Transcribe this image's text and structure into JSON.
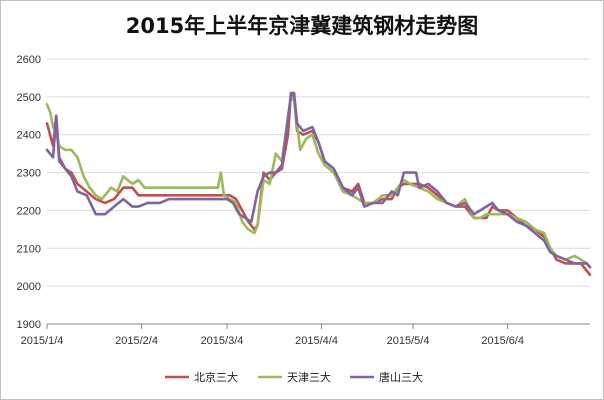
{
  "chart_data": {
    "type": "line",
    "title": "2015年上半年京津冀建筑钢材走势图",
    "xlabel": "",
    "ylabel": "",
    "ylim": [
      1900,
      2600
    ],
    "yticks": [
      1900,
      2000,
      2100,
      2200,
      2300,
      2400,
      2500,
      2600
    ],
    "x_range": [
      "2015-01-04",
      "2015-07-01"
    ],
    "xtick_labels": [
      "2015/1/4",
      "2015/2/4",
      "2015/3/4",
      "2015/4/4",
      "2015/5/4",
      "2015/6/4"
    ],
    "xtick_dates": [
      "2015-01-04",
      "2015-02-04",
      "2015-03-04",
      "2015-04-04",
      "2015-05-04",
      "2015-06-04"
    ],
    "grid": "horizontal",
    "legend_position": "bottom",
    "series": [
      {
        "name": "北京三大",
        "color": "#c0504d",
        "points": [
          [
            "2015-01-04",
            2430
          ],
          [
            "2015-01-06",
            2370
          ],
          [
            "2015-01-07",
            2450
          ],
          [
            "2015-01-08",
            2340
          ],
          [
            "2015-01-10",
            2310
          ],
          [
            "2015-01-12",
            2300
          ],
          [
            "2015-01-14",
            2270
          ],
          [
            "2015-01-17",
            2250
          ],
          [
            "2015-01-20",
            2230
          ],
          [
            "2015-01-23",
            2220
          ],
          [
            "2015-01-26",
            2230
          ],
          [
            "2015-01-29",
            2260
          ],
          [
            "2015-02-01",
            2260
          ],
          [
            "2015-02-03",
            2240
          ],
          [
            "2015-02-06",
            2240
          ],
          [
            "2015-02-10",
            2240
          ],
          [
            "2015-02-15",
            2240
          ],
          [
            "2015-02-20",
            2240
          ],
          [
            "2015-02-25",
            2240
          ],
          [
            "2015-03-01",
            2240
          ],
          [
            "2015-03-04",
            2240
          ],
          [
            "2015-03-05",
            2240
          ],
          [
            "2015-03-07",
            2230
          ],
          [
            "2015-03-09",
            2200
          ],
          [
            "2015-03-11",
            2170
          ],
          [
            "2015-03-13",
            2150
          ],
          [
            "2015-03-14",
            2160
          ],
          [
            "2015-03-16",
            2300
          ],
          [
            "2015-03-18",
            2280
          ],
          [
            "2015-03-20",
            2300
          ],
          [
            "2015-03-22",
            2310
          ],
          [
            "2015-03-24",
            2400
          ],
          [
            "2015-03-25",
            2510
          ],
          [
            "2015-03-26",
            2500
          ],
          [
            "2015-03-27",
            2410
          ],
          [
            "2015-03-29",
            2400
          ],
          [
            "2015-04-01",
            2410
          ],
          [
            "2015-04-03",
            2380
          ],
          [
            "2015-04-05",
            2330
          ],
          [
            "2015-04-08",
            2310
          ],
          [
            "2015-04-11",
            2260
          ],
          [
            "2015-04-14",
            2250
          ],
          [
            "2015-04-16",
            2270
          ],
          [
            "2015-04-18",
            2220
          ],
          [
            "2015-04-21",
            2220
          ],
          [
            "2015-04-24",
            2230
          ],
          [
            "2015-04-27",
            2230
          ],
          [
            "2015-04-29",
            2260
          ],
          [
            "2015-05-01",
            2270
          ],
          [
            "2015-05-03",
            2270
          ],
          [
            "2015-05-06",
            2270
          ],
          [
            "2015-05-09",
            2260
          ],
          [
            "2015-05-12",
            2240
          ],
          [
            "2015-05-15",
            2220
          ],
          [
            "2015-05-18",
            2210
          ],
          [
            "2015-05-21",
            2210
          ],
          [
            "2015-05-24",
            2180
          ],
          [
            "2015-05-26",
            2180
          ],
          [
            "2015-05-28",
            2180
          ],
          [
            "2015-05-30",
            2210
          ],
          [
            "2015-06-01",
            2200
          ],
          [
            "2015-06-04",
            2200
          ],
          [
            "2015-06-07",
            2180
          ],
          [
            "2015-06-10",
            2160
          ],
          [
            "2015-06-13",
            2150
          ],
          [
            "2015-06-16",
            2130
          ],
          [
            "2015-06-18",
            2100
          ],
          [
            "2015-06-20",
            2070
          ],
          [
            "2015-06-23",
            2060
          ],
          [
            "2015-06-26",
            2060
          ],
          [
            "2015-06-28",
            2060
          ],
          [
            "2015-06-30",
            2040
          ],
          [
            "2015-07-01",
            2030
          ]
        ]
      },
      {
        "name": "天津三大",
        "color": "#9bbb59",
        "points": [
          [
            "2015-01-04",
            2480
          ],
          [
            "2015-01-05",
            2460
          ],
          [
            "2015-01-06",
            2420
          ],
          [
            "2015-01-07",
            2400
          ],
          [
            "2015-01-08",
            2370
          ],
          [
            "2015-01-10",
            2360
          ],
          [
            "2015-01-12",
            2360
          ],
          [
            "2015-01-14",
            2340
          ],
          [
            "2015-01-16",
            2290
          ],
          [
            "2015-01-18",
            2260
          ],
          [
            "2015-01-20",
            2240
          ],
          [
            "2015-01-22",
            2230
          ],
          [
            "2015-01-25",
            2260
          ],
          [
            "2015-01-27",
            2250
          ],
          [
            "2015-01-29",
            2290
          ],
          [
            "2015-02-01",
            2270
          ],
          [
            "2015-02-03",
            2280
          ],
          [
            "2015-02-05",
            2260
          ],
          [
            "2015-02-10",
            2260
          ],
          [
            "2015-02-15",
            2260
          ],
          [
            "2015-02-20",
            2260
          ],
          [
            "2015-02-25",
            2260
          ],
          [
            "2015-03-01",
            2260
          ],
          [
            "2015-03-02",
            2300
          ],
          [
            "2015-03-03",
            2240
          ],
          [
            "2015-03-05",
            2230
          ],
          [
            "2015-03-07",
            2220
          ],
          [
            "2015-03-09",
            2170
          ],
          [
            "2015-03-11",
            2150
          ],
          [
            "2015-03-13",
            2140
          ],
          [
            "2015-03-14",
            2160
          ],
          [
            "2015-03-16",
            2280
          ],
          [
            "2015-03-18",
            2270
          ],
          [
            "2015-03-20",
            2350
          ],
          [
            "2015-03-22",
            2330
          ],
          [
            "2015-03-24",
            2450
          ],
          [
            "2015-03-25",
            2500
          ],
          [
            "2015-03-26",
            2490
          ],
          [
            "2015-03-28",
            2360
          ],
          [
            "2015-03-30",
            2390
          ],
          [
            "2015-04-01",
            2400
          ],
          [
            "2015-04-03",
            2350
          ],
          [
            "2015-04-05",
            2320
          ],
          [
            "2015-04-08",
            2300
          ],
          [
            "2015-04-11",
            2250
          ],
          [
            "2015-04-14",
            2240
          ],
          [
            "2015-04-16",
            2230
          ],
          [
            "2015-04-18",
            2220
          ],
          [
            "2015-04-21",
            2220
          ],
          [
            "2015-04-24",
            2240
          ],
          [
            "2015-04-27",
            2240
          ],
          [
            "2015-04-29",
            2260
          ],
          [
            "2015-05-01",
            2280
          ],
          [
            "2015-05-03",
            2270
          ],
          [
            "2015-05-06",
            2260
          ],
          [
            "2015-05-09",
            2250
          ],
          [
            "2015-05-12",
            2230
          ],
          [
            "2015-05-15",
            2220
          ],
          [
            "2015-05-18",
            2210
          ],
          [
            "2015-05-21",
            2230
          ],
          [
            "2015-05-24",
            2180
          ],
          [
            "2015-05-26",
            2180
          ],
          [
            "2015-05-28",
            2190
          ],
          [
            "2015-05-30",
            2190
          ],
          [
            "2015-06-01",
            2190
          ],
          [
            "2015-06-04",
            2190
          ],
          [
            "2015-06-07",
            2180
          ],
          [
            "2015-06-10",
            2170
          ],
          [
            "2015-06-13",
            2150
          ],
          [
            "2015-06-16",
            2140
          ],
          [
            "2015-06-18",
            2100
          ],
          [
            "2015-06-20",
            2080
          ],
          [
            "2015-06-23",
            2070
          ],
          [
            "2015-06-26",
            2080
          ],
          [
            "2015-06-28",
            2070
          ],
          [
            "2015-06-30",
            2060
          ],
          [
            "2015-07-01",
            2050
          ]
        ]
      },
      {
        "name": "唐山三大",
        "color": "#8064a2",
        "points": [
          [
            "2015-01-04",
            2360
          ],
          [
            "2015-01-06",
            2340
          ],
          [
            "2015-01-07",
            2450
          ],
          [
            "2015-01-08",
            2330
          ],
          [
            "2015-01-10",
            2310
          ],
          [
            "2015-01-12",
            2290
          ],
          [
            "2015-01-14",
            2250
          ],
          [
            "2015-01-17",
            2240
          ],
          [
            "2015-01-20",
            2190
          ],
          [
            "2015-01-23",
            2190
          ],
          [
            "2015-01-26",
            2210
          ],
          [
            "2015-01-29",
            2230
          ],
          [
            "2015-02-01",
            2210
          ],
          [
            "2015-02-03",
            2210
          ],
          [
            "2015-02-06",
            2220
          ],
          [
            "2015-02-10",
            2220
          ],
          [
            "2015-02-13",
            2230
          ],
          [
            "2015-02-18",
            2230
          ],
          [
            "2015-02-23",
            2230
          ],
          [
            "2015-02-28",
            2230
          ],
          [
            "2015-03-04",
            2230
          ],
          [
            "2015-03-06",
            2220
          ],
          [
            "2015-03-08",
            2190
          ],
          [
            "2015-03-10",
            2180
          ],
          [
            "2015-03-12",
            2170
          ],
          [
            "2015-03-14",
            2250
          ],
          [
            "2015-03-16",
            2290
          ],
          [
            "2015-03-18",
            2300
          ],
          [
            "2015-03-20",
            2300
          ],
          [
            "2015-03-22",
            2320
          ],
          [
            "2015-03-24",
            2440
          ],
          [
            "2015-03-25",
            2510
          ],
          [
            "2015-03-26",
            2510
          ],
          [
            "2015-03-27",
            2430
          ],
          [
            "2015-03-29",
            2410
          ],
          [
            "2015-04-01",
            2420
          ],
          [
            "2015-04-03",
            2380
          ],
          [
            "2015-04-05",
            2330
          ],
          [
            "2015-04-08",
            2310
          ],
          [
            "2015-04-11",
            2260
          ],
          [
            "2015-04-14",
            2240
          ],
          [
            "2015-04-16",
            2260
          ],
          [
            "2015-04-18",
            2210
          ],
          [
            "2015-04-21",
            2220
          ],
          [
            "2015-04-24",
            2220
          ],
          [
            "2015-04-27",
            2250
          ],
          [
            "2015-04-29",
            2240
          ],
          [
            "2015-05-01",
            2300
          ],
          [
            "2015-05-03",
            2300
          ],
          [
            "2015-05-05",
            2300
          ],
          [
            "2015-05-06",
            2260
          ],
          [
            "2015-05-09",
            2270
          ],
          [
            "2015-05-12",
            2250
          ],
          [
            "2015-05-15",
            2220
          ],
          [
            "2015-05-18",
            2210
          ],
          [
            "2015-05-21",
            2220
          ],
          [
            "2015-05-24",
            2190
          ],
          [
            "2015-05-26",
            2200
          ],
          [
            "2015-05-28",
            2210
          ],
          [
            "2015-05-30",
            2220
          ],
          [
            "2015-06-01",
            2200
          ],
          [
            "2015-06-04",
            2190
          ],
          [
            "2015-06-07",
            2170
          ],
          [
            "2015-06-10",
            2160
          ],
          [
            "2015-06-13",
            2140
          ],
          [
            "2015-06-16",
            2120
          ],
          [
            "2015-06-18",
            2090
          ],
          [
            "2015-06-20",
            2080
          ],
          [
            "2015-06-23",
            2070
          ],
          [
            "2015-06-26",
            2060
          ],
          [
            "2015-06-28",
            2060
          ],
          [
            "2015-06-30",
            2060
          ],
          [
            "2015-07-01",
            2050
          ]
        ]
      }
    ]
  }
}
